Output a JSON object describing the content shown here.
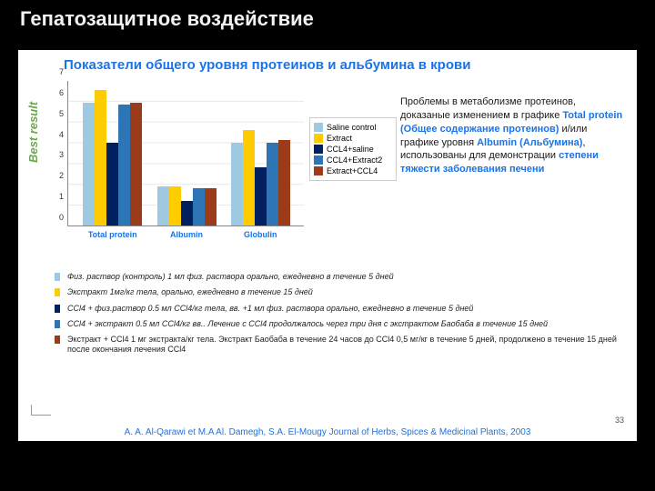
{
  "title": "Гепатозащитное воздействие",
  "subtitle": "Показатели общего уровня протеинов и альбумина в крови",
  "best_label": "Best result",
  "page_number": "33",
  "citation": "A. A. Al-Qarawi et M.A Al. Damegh, S.A. El-Mougy Journal of Herbs, Spices & Medicinal Plants, 2003",
  "chart": {
    "type": "bar",
    "ylim_min": 0,
    "ylim_max": 7,
    "ytick_step": 1,
    "yticks": [
      "0",
      "1",
      "2",
      "3",
      "4",
      "5",
      "6",
      "7"
    ],
    "categories": [
      "Total protein",
      "Albumin",
      "Globulin"
    ],
    "category_colors": [
      "#1a73e8",
      "#1a73e8",
      "#1a73e8"
    ],
    "series": [
      {
        "name": "Saline control",
        "color": "#9ecae1",
        "values": [
          5.9,
          1.9,
          4.0
        ]
      },
      {
        "name": "Extract",
        "color": "#ffcc00",
        "values": [
          6.5,
          1.9,
          4.6
        ]
      },
      {
        "name": "CCL4+saline",
        "color": "#002060",
        "values": [
          4.0,
          1.2,
          2.8
        ]
      },
      {
        "name": "CCL4+Extract2",
        "color": "#2e75b6",
        "values": [
          5.8,
          1.8,
          4.0
        ]
      },
      {
        "name": "Extract+CCL4",
        "color": "#9c3b1a",
        "values": [
          5.9,
          1.8,
          4.1
        ]
      }
    ],
    "axis_color": "#888",
    "grid_color": "#cccccc",
    "background": "#ffffff",
    "tick_fontsize": 9,
    "label_fontsize": 9
  },
  "desc": {
    "t1": "Проблемы в метаболизме протеинов, доказаные изменением в графике ",
    "k1": "Total protein (Общее содержание протеинов)",
    "t2": " и/или графике уровня ",
    "k2": "Albumin (Альбумина)",
    "t3": ", использованы для демонстрации ",
    "k3": "степени тяжести заболевания печени"
  },
  "key_items": [
    {
      "color": "#9ecae1",
      "text": "Физ. раствор (контроль) 1 мл физ. раствора орально, ежедневно в течение 5 дней",
      "italic": true
    },
    {
      "color": "#ffcc00",
      "text": "Экстракт 1мг/кг тела, орально, ежедневно в течение 15 дней",
      "italic": true
    },
    {
      "color": "#002060",
      "text": "CCl4 + физ.раствор 0.5 мл CCl4/кг тела, вв. +1 мл физ. раствора орально, ежедневно в течение 5 дней",
      "italic": true
    },
    {
      "color": "#2e75b6",
      "text": "CCl4 + экстракт 0.5 мл CCl4/кг вв.. Лечение с CCl4 продолжалось через три дня с экстрактом Баобаба в течение 15 дней",
      "italic": true
    },
    {
      "color": "#9c3b1a",
      "text": "Экстракт + CCl4 1 мг экстракта/кг тела. Экстракт Баобаба в течение 24 часов до CCl4 0,5 мг/кг в течение 5 дней, продолжено в течение 15 дней после окончания лечения CCl4",
      "italic": false
    }
  ]
}
